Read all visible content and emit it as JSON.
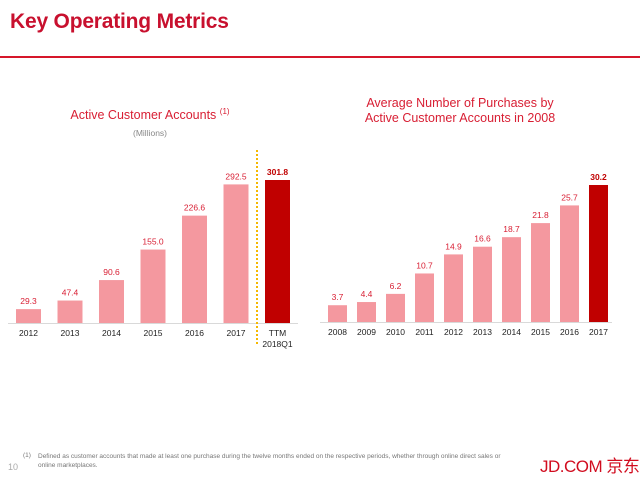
{
  "page": {
    "title": "Key Operating Metrics",
    "page_number": "10",
    "footnote_marker": "(1)",
    "footnote_text": "Defined as customer accounts that made at least one purchase during the twelve months ended on the respective periods, whether through online direct sales or online marketplaces.",
    "logo_text": "JD.COM 京东",
    "colors": {
      "brand_red": "#c8102e",
      "bar_light": "#f4989f",
      "bar_highlight": "#c00000",
      "label_red": "#d81e33",
      "divider_dotted": "#f5b800"
    }
  },
  "chart_data": [
    {
      "type": "bar",
      "title": "Active Customer Accounts",
      "title_superscript": "(1)",
      "subtitle": "(Millions)",
      "xlabel": "",
      "ylabel": "",
      "categories": [
        "2012",
        "2013",
        "2014",
        "2015",
        "2016",
        "2017",
        "TTM\n2018Q1"
      ],
      "category_lines": [
        [
          "2012"
        ],
        [
          "2013"
        ],
        [
          "2014"
        ],
        [
          "2015"
        ],
        [
          "2016"
        ],
        [
          "2017"
        ],
        [
          "TTM",
          "2018Q1"
        ]
      ],
      "values": [
        29.3,
        47.4,
        90.6,
        155.0,
        226.6,
        292.5,
        301.8
      ],
      "value_labels": [
        "29.3",
        "47.4",
        "90.6",
        "155.0",
        "226.6",
        "292.5",
        "301.8"
      ],
      "highlight_index": 6,
      "divider_before_index": 6,
      "ylim": [
        0,
        301.8
      ],
      "grid": false,
      "legend": "none"
    },
    {
      "type": "bar",
      "title": "Average Number of Purchases by Active Customer Accounts in 2008",
      "title_lines": [
        "Average Number of Purchases by",
        "Active Customer Accounts in 2008"
      ],
      "xlabel": "",
      "ylabel": "",
      "categories": [
        "2008",
        "2009",
        "2010",
        "2011",
        "2012",
        "2013",
        "2014",
        "2015",
        "2016",
        "2017"
      ],
      "values": [
        3.7,
        4.4,
        6.2,
        10.7,
        14.9,
        16.6,
        18.7,
        21.8,
        25.7,
        30.2
      ],
      "value_labels": [
        "3.7",
        "4.4",
        "6.2",
        "10.7",
        "14.9",
        "16.6",
        "18.7",
        "21.8",
        "25.7",
        "30.2"
      ],
      "highlight_index": 9,
      "ylim": [
        0,
        30.2
      ],
      "grid": false,
      "legend": "none"
    }
  ]
}
